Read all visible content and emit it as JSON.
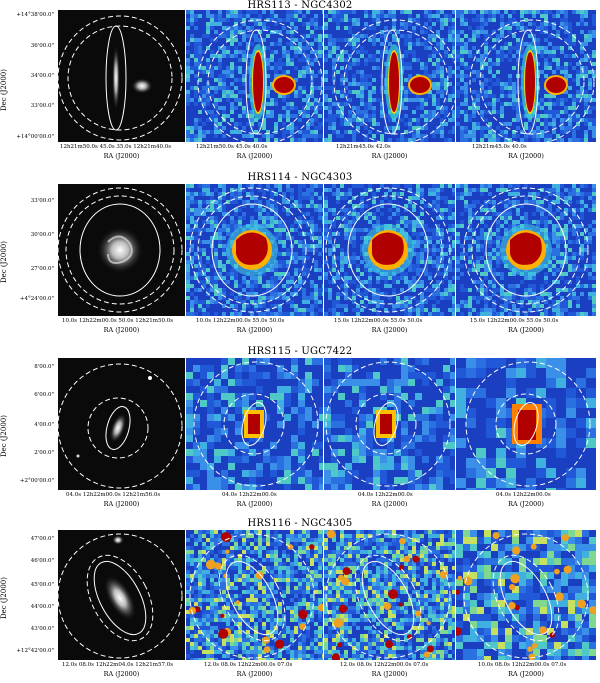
{
  "figure": {
    "rows": [
      {
        "title": "HRS113 - NGC4302",
        "ylabel": "Dec (J2000)",
        "yticks": [
          "+14°38'00.0\"",
          "36'00.0\"",
          "34'00.0\"",
          "33'00.0\"",
          "+14°00'00.0\""
        ],
        "xlabel_optical": "RA (J2000)",
        "xlabel": "RA (J2000)",
        "xticks": [
          "12h21m50.0s  45.0s  35.0s  12h21m40.0s",
          "12h21m50.0s  45.0s  40.0s",
          "12h21m45.0s  42.0s",
          "12h21m45.0s  40.0s"
        ]
      },
      {
        "title": "HRS114 - NGC4303",
        "ylabel": "Dec (J2000)",
        "yticks": [
          "33'00.0\"",
          "30'00.0\"",
          "27'00.0\"",
          "+4°24'00.0\""
        ],
        "xlabel_optical": "RA (J2000)",
        "xlabel": "RA (J2000)",
        "xticks": [
          "10.0s 12h22m00.0s 50.0s 12h21m50.0s",
          "10.0s 12h22m00.0s 55.0s 50.0s",
          "15.0s 12h22m00.0s 55.0s 50.0s",
          "15.0s 12h22m00.0s 55.0s 50.0s"
        ]
      },
      {
        "title": "HRS115 - UGC7422",
        "ylabel": "Dec (J2000)",
        "yticks": [
          "8'00.0\"",
          "6'00.0\"",
          "4'00.0\"",
          "2'00.0\"",
          "+2°00'00.0\""
        ],
        "xlabel_optical": "RA (J2000)",
        "xlabel": "RA (J2000)",
        "xticks": [
          "04.0s 12h22m00.0s 12h21m56.0s",
          "04.0s 12h22m00.0s",
          "04.0s 12h22m00.0s",
          "04.0s 12h22m00.0s"
        ]
      },
      {
        "title": "HRS116 - NGC4305",
        "ylabel": "Dec (J2000)",
        "yticks": [
          "47'00.0\"",
          "46'00.0\"",
          "45'00.0\"",
          "44'00.0\"",
          "43'00.0\"",
          "+12°42'00.0\""
        ],
        "xlabel_optical": "RA (J2000)",
        "xlabel": "RA (J2000)",
        "xticks": [
          "12.0s 08.0s 12h22m04.0s 12h21m57.0s",
          "12.0s 08.0s 12h22m00.0s 07.0s",
          "12.0s 08.0s 12h22m00.0s 07.0s",
          "10.0s 08.0s 12h22m00.0s 07.0s"
        ]
      }
    ]
  },
  "colors": {
    "background_map": "#1a4fd0",
    "hot": "#b00000",
    "optical_bg": "#0a0a0a",
    "contour": "#ffffff"
  }
}
